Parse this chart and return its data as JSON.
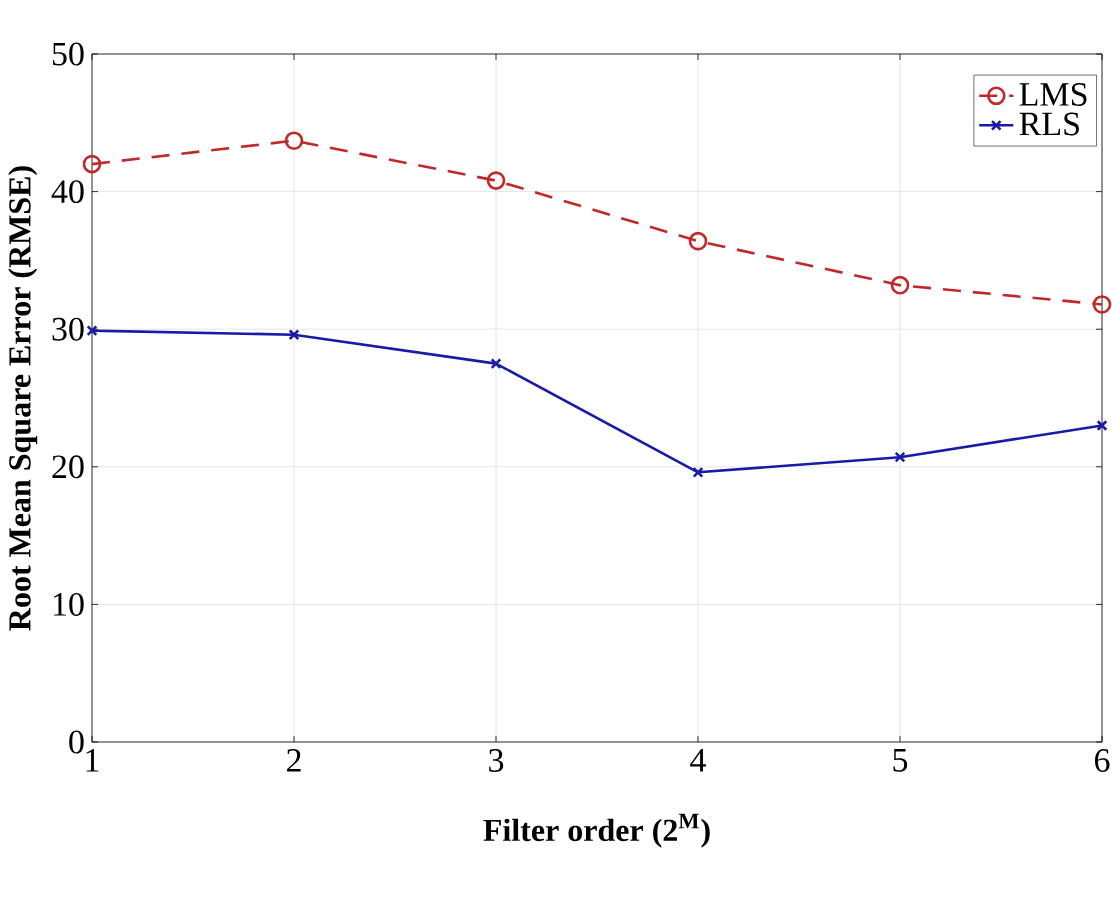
{
  "chart_data": {
    "type": "line",
    "xlabel": "Filter order (2$^{M}$)",
    "ylabel": "Root Mean Square Error (RMSE)",
    "x": [
      1,
      2,
      3,
      4,
      5,
      6
    ],
    "xlim": [
      1,
      6
    ],
    "xticks": [
      1,
      2,
      3,
      4,
      5,
      6
    ],
    "ylim": [
      0,
      50
    ],
    "yticks": [
      0,
      10,
      20,
      30,
      40,
      50
    ],
    "grid": true,
    "legend": "top right",
    "series": [
      {
        "name": "LMS",
        "color": "#c0282a",
        "marker": "circle",
        "line_style": "dashed",
        "values": [
          42.0,
          43.7,
          40.8,
          36.4,
          33.2,
          31.8
        ]
      },
      {
        "name": "RLS",
        "color": "#1a1aa8",
        "marker": "cross",
        "line_style": "solid",
        "values": [
          29.9,
          29.6,
          27.5,
          19.6,
          20.7,
          23.0
        ]
      }
    ]
  }
}
